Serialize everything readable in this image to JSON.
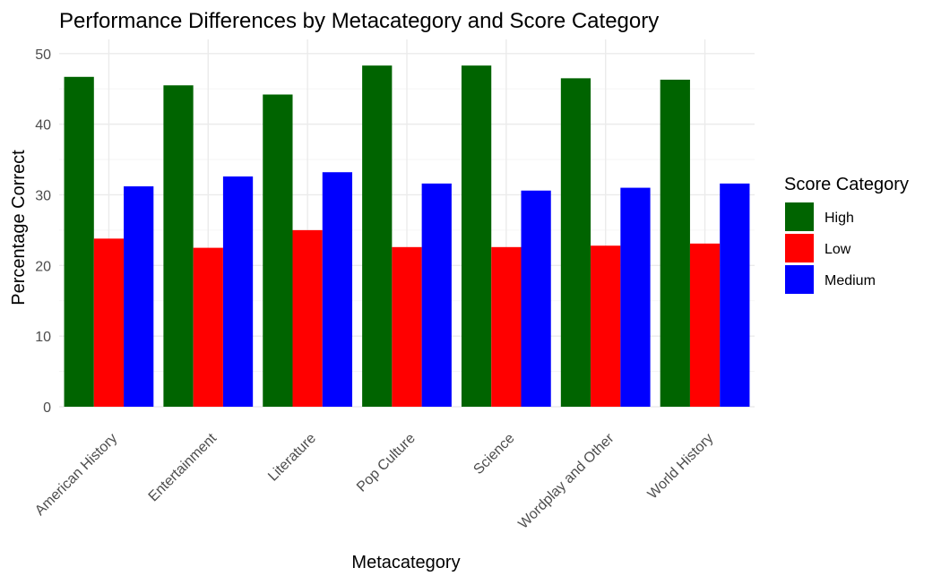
{
  "chart_data": {
    "type": "bar",
    "title": "Performance Differences by Metacategory and Score Category",
    "xlabel": "Metacategory",
    "ylabel": "Percentage Correct",
    "ylim": [
      0,
      52
    ],
    "yticks": [
      0,
      10,
      20,
      30,
      40,
      50
    ],
    "grid": true,
    "legend_title": "Score Category",
    "legend_position": "right",
    "categories": [
      "American History",
      "Entertainment",
      "Literature",
      "Pop Culture",
      "Science",
      "Wordplay and Other",
      "World History"
    ],
    "series": [
      {
        "name": "High",
        "color": "#006400",
        "values": [
          46.7,
          45.5,
          44.2,
          48.3,
          48.3,
          46.5,
          46.3
        ]
      },
      {
        "name": "Low",
        "color": "#ff0000",
        "values": [
          23.8,
          22.5,
          25.0,
          22.6,
          22.6,
          22.8,
          23.1
        ]
      },
      {
        "name": "Medium",
        "color": "#0000ff",
        "values": [
          31.2,
          32.6,
          33.2,
          31.6,
          30.6,
          31.0,
          31.6
        ]
      }
    ]
  }
}
